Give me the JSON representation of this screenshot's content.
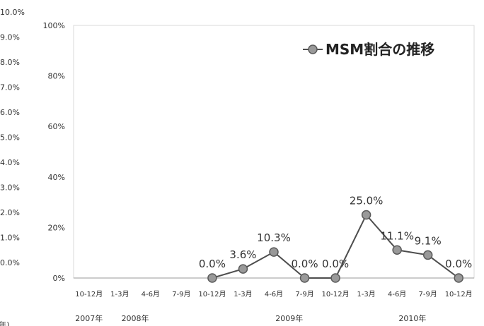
{
  "chart_data": {
    "type": "line",
    "title": "",
    "legend": {
      "label": "MSM割合の推移",
      "position": "top-right"
    },
    "left_axis_ticks": [
      "0.0%",
      "1.0%",
      "2.0%",
      "3.0%",
      "4.0%",
      "5.0%",
      "6.0%",
      "7.0%",
      "8.0%",
      "9.0%",
      "10.0%"
    ],
    "y_axis_ticks": [
      "0%",
      "20%",
      "40%",
      "60%",
      "80%",
      "100%"
    ],
    "ylim": [
      0,
      100
    ],
    "categories": [
      "10-12月",
      "1-3月",
      "4-6月",
      "7-9月",
      "10-12月",
      "1-3月",
      "4-6月",
      "7-9月",
      "10-12月",
      "1-3月",
      "4-6月",
      "7-9月",
      "10-12月"
    ],
    "years": [
      {
        "label": "2007年",
        "index": 0
      },
      {
        "label": "2008年",
        "index": 1.5
      },
      {
        "label": "2009年",
        "index": 6.5
      },
      {
        "label": "2010年",
        "index": 10.5
      }
    ],
    "series": [
      {
        "name": "MSM割合の推移",
        "values": [
          null,
          null,
          null,
          null,
          0.0,
          3.6,
          10.3,
          0.0,
          0.0,
          25.0,
          11.1,
          9.1,
          0.0
        ],
        "labels": [
          null,
          null,
          null,
          null,
          "0.0%",
          "3.6%",
          "10.3%",
          "0.0%",
          "0.0%",
          "25.0%",
          "11.1%",
          "9.1%",
          "0.0%"
        ]
      }
    ],
    "colors": {
      "line": "#4d4d4d",
      "marker": "#999999",
      "marker_stroke": "#5a5a5a"
    },
    "corner_fragment": "(年)"
  }
}
